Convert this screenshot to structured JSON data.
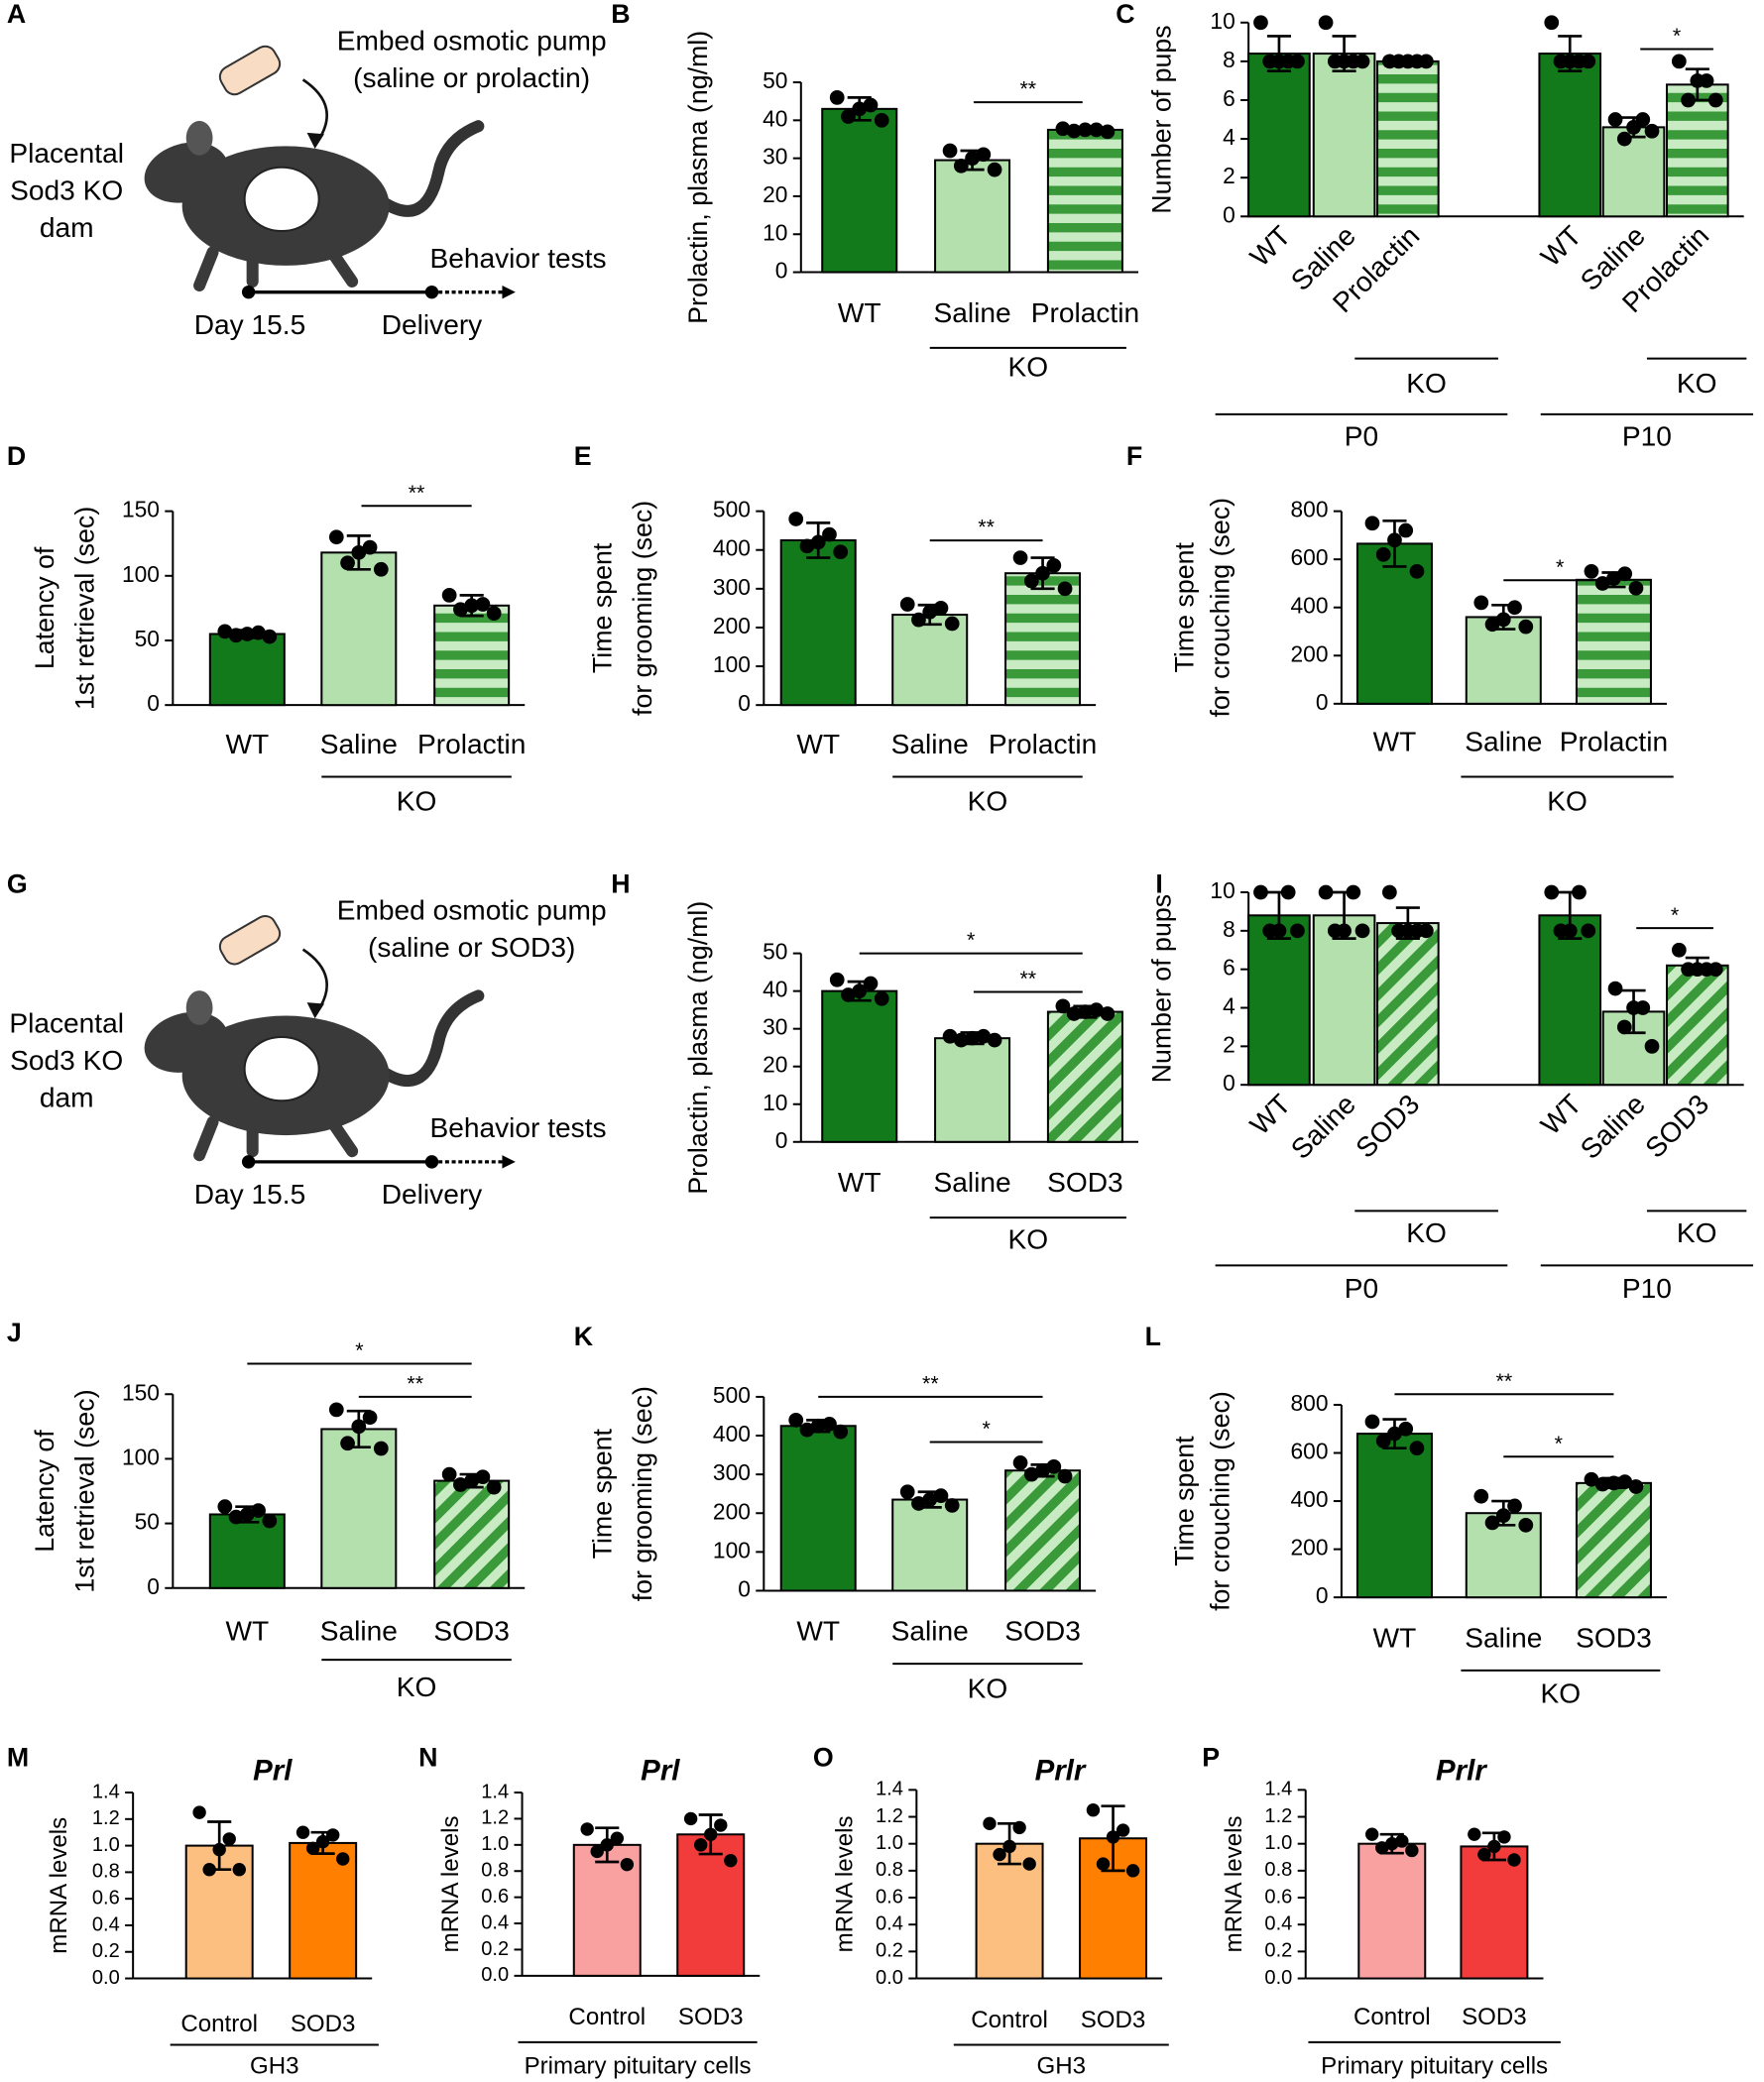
{
  "diagrams": [
    {
      "panel": "A",
      "pump": [
        "Embed osmotic pump",
        "(saline or prolactin)"
      ],
      "subject": [
        "Placental",
        "Sod3 KO",
        "dam"
      ],
      "tests": "Behavior tests",
      "start": "Day 15.5",
      "end": "Delivery"
    },
    {
      "panel": "G",
      "pump": [
        "Embed osmotic pump",
        "(saline or SOD3)"
      ],
      "subject": [
        "Placental",
        "Sod3 KO",
        "dam"
      ],
      "tests": "Behavior tests",
      "start": "Day 15.5",
      "end": "Delivery"
    }
  ],
  "chart_data": [
    {
      "type": "bar",
      "panel": "B",
      "ylabel": [
        "Prolactin, plasma (ng/ml)"
      ],
      "categories": [
        "WT",
        "Saline",
        "Prolactin"
      ],
      "groups": [
        "KO"
      ],
      "values": [
        43,
        29.5,
        37.5
      ],
      "errors": [
        3,
        2.5,
        0.7
      ],
      "points": [
        [
          46,
          44,
          43,
          41,
          40
        ],
        [
          32,
          31,
          30,
          28,
          27
        ],
        [
          37.8,
          37.5,
          37.5,
          37.2,
          37
        ]
      ],
      "colors": [
        "#127a1a",
        "#b3e0ad",
        "#3a9a3a"
      ],
      "patterns": [
        "solid",
        "solid",
        "hstripe"
      ],
      "ylim": [
        0,
        50
      ],
      "yticks": [
        0,
        10,
        20,
        30,
        40,
        50
      ],
      "annotations": [
        "**"
      ]
    },
    {
      "type": "bar",
      "panel": "C",
      "ylabel": [
        "Number of pups"
      ],
      "categories": [
        "WT",
        "Saline",
        "Prolactin",
        "WT",
        "Saline",
        "Prolactin"
      ],
      "groups": [
        "KO",
        "KO",
        "P0",
        "P10"
      ],
      "values": [
        8.4,
        8.4,
        8,
        8.4,
        4.6,
        6.8
      ],
      "errors": [
        0.9,
        0.9,
        0,
        0.9,
        0.5,
        0.8
      ],
      "points": [
        [
          10,
          8,
          8,
          8,
          8
        ],
        [
          10,
          8,
          8,
          8,
          8
        ],
        [
          8,
          8,
          8,
          8,
          8
        ],
        [
          10,
          8,
          8,
          8,
          8
        ],
        [
          5,
          5,
          4.6,
          4,
          4.4
        ],
        [
          8,
          7,
          7,
          6,
          6
        ]
      ],
      "colors": [
        "#127a1a",
        "#b3e0ad",
        "#3a9a3a",
        "#127a1a",
        "#b3e0ad",
        "#3a9a3a"
      ],
      "patterns": [
        "solid",
        "solid",
        "hstripe",
        "solid",
        "solid",
        "hstripe"
      ],
      "ylim": [
        0,
        10
      ],
      "yticks": [
        0,
        2,
        4,
        6,
        8,
        10
      ],
      "annotations": [
        "*"
      ]
    },
    {
      "type": "bar",
      "panel": "D",
      "ylabel": [
        "Latency of",
        "1st retrieval (sec)"
      ],
      "categories": [
        "WT",
        "Saline",
        "Prolactin"
      ],
      "groups": [
        "KO"
      ],
      "values": [
        55,
        118,
        77
      ],
      "errors": [
        3,
        13,
        8
      ],
      "points": [
        [
          57,
          56,
          55,
          54,
          53
        ],
        [
          130,
          122,
          118,
          110,
          105
        ],
        [
          85,
          78,
          77,
          74,
          71
        ]
      ],
      "colors": [
        "#127a1a",
        "#b3e0ad",
        "#3a9a3a"
      ],
      "patterns": [
        "solid",
        "solid",
        "hstripe"
      ],
      "ylim": [
        0,
        150
      ],
      "yticks": [
        0,
        50,
        100,
        150
      ],
      "annotations": [
        "**"
      ]
    },
    {
      "type": "bar",
      "panel": "E",
      "ylabel": [
        "Time spent",
        "for grooming (sec)"
      ],
      "categories": [
        "WT",
        "Saline",
        "Prolactin"
      ],
      "groups": [
        "KO"
      ],
      "values": [
        425,
        233,
        340
      ],
      "errors": [
        45,
        25,
        40
      ],
      "points": [
        [
          480,
          440,
          420,
          410,
          395
        ],
        [
          260,
          250,
          240,
          220,
          210
        ],
        [
          380,
          360,
          340,
          320,
          300
        ]
      ],
      "colors": [
        "#127a1a",
        "#b3e0ad",
        "#3a9a3a"
      ],
      "patterns": [
        "solid",
        "solid",
        "hstripe"
      ],
      "ylim": [
        0,
        500
      ],
      "yticks": [
        0,
        100,
        200,
        300,
        400,
        500
      ],
      "annotations": [
        "**"
      ]
    },
    {
      "type": "bar",
      "panel": "F",
      "ylabel": [
        "Time spent",
        "for crouching (sec)"
      ],
      "categories": [
        "WT",
        "Saline",
        "Prolactin"
      ],
      "groups": [
        "KO"
      ],
      "values": [
        665,
        360,
        515
      ],
      "errors": [
        95,
        50,
        30
      ],
      "points": [
        [
          750,
          720,
          680,
          620,
          550
        ],
        [
          420,
          400,
          350,
          330,
          320
        ],
        [
          550,
          540,
          520,
          500,
          480
        ]
      ],
      "colors": [
        "#127a1a",
        "#b3e0ad",
        "#3a9a3a"
      ],
      "patterns": [
        "solid",
        "solid",
        "hstripe"
      ],
      "ylim": [
        0,
        800
      ],
      "yticks": [
        0,
        200,
        400,
        600,
        800
      ],
      "annotations": [
        "*"
      ]
    },
    {
      "type": "bar",
      "panel": "H",
      "ylabel": [
        "Prolactin, plasma (ng/ml)"
      ],
      "categories": [
        "WT",
        "Saline",
        "SOD3"
      ],
      "groups": [
        "KO"
      ],
      "values": [
        40,
        27.5,
        34.5
      ],
      "errors": [
        2.5,
        1.5,
        1.5
      ],
      "points": [
        [
          43,
          42,
          40,
          39,
          38
        ],
        [
          28,
          28,
          27.5,
          27,
          27
        ],
        [
          36,
          35,
          34.5,
          34,
          34
        ]
      ],
      "colors": [
        "#127a1a",
        "#b3e0ad",
        "#3a9a3a"
      ],
      "patterns": [
        "solid",
        "solid",
        "dstripe"
      ],
      "ylim": [
        0,
        50
      ],
      "yticks": [
        0,
        10,
        20,
        30,
        40,
        50
      ],
      "annotations": [
        "*",
        "**"
      ]
    },
    {
      "type": "bar",
      "panel": "I",
      "ylabel": [
        "Number of pups"
      ],
      "categories": [
        "WT",
        "Saline",
        "SOD3",
        "WT",
        "Saline",
        "SOD3"
      ],
      "groups": [
        "KO",
        "KO",
        "P0",
        "P10"
      ],
      "values": [
        8.8,
        8.8,
        8.4,
        8.8,
        3.8,
        6.2
      ],
      "errors": [
        1.2,
        1.2,
        0.8,
        1.2,
        1.1,
        0.4
      ],
      "points": [
        [
          10,
          10,
          8,
          8,
          8
        ],
        [
          10,
          10,
          8,
          8,
          8
        ],
        [
          10,
          8,
          8,
          8,
          8
        ],
        [
          10,
          10,
          8,
          8,
          8
        ],
        [
          5,
          4,
          4,
          3,
          2
        ],
        [
          7,
          6,
          6,
          6,
          6
        ]
      ],
      "colors": [
        "#127a1a",
        "#b3e0ad",
        "#3a9a3a",
        "#127a1a",
        "#b3e0ad",
        "#3a9a3a"
      ],
      "patterns": [
        "solid",
        "solid",
        "dstripe",
        "solid",
        "solid",
        "dstripe"
      ],
      "ylim": [
        0,
        10
      ],
      "yticks": [
        0,
        2,
        4,
        6,
        8,
        10
      ],
      "annotations": [
        "*"
      ]
    },
    {
      "type": "bar",
      "panel": "J",
      "ylabel": [
        "Latency of",
        "1st retrieval (sec)"
      ],
      "categories": [
        "WT",
        "Saline",
        "SOD3"
      ],
      "groups": [
        "KO"
      ],
      "values": [
        57,
        123,
        83
      ],
      "errors": [
        6,
        14,
        5
      ],
      "points": [
        [
          63,
          60,
          57,
          55,
          52
        ],
        [
          138,
          132,
          125,
          112,
          108
        ],
        [
          88,
          86,
          83,
          80,
          78
        ]
      ],
      "colors": [
        "#127a1a",
        "#b3e0ad",
        "#3a9a3a"
      ],
      "patterns": [
        "solid",
        "solid",
        "dstripe"
      ],
      "ylim": [
        0,
        150
      ],
      "yticks": [
        0,
        50,
        100,
        150
      ],
      "annotations": [
        "*",
        "**"
      ]
    },
    {
      "type": "bar",
      "panel": "K",
      "ylabel": [
        "Time spent",
        "for grooming (sec)"
      ],
      "categories": [
        "WT",
        "Saline",
        "SOD3"
      ],
      "groups": [
        "KO"
      ],
      "values": [
        425,
        235,
        310
      ],
      "errors": [
        15,
        20,
        15
      ],
      "points": [
        [
          440,
          430,
          425,
          415,
          410
        ],
        [
          255,
          245,
          235,
          225,
          220
        ],
        [
          330,
          320,
          310,
          300,
          295
        ]
      ],
      "colors": [
        "#127a1a",
        "#b3e0ad",
        "#3a9a3a"
      ],
      "patterns": [
        "solid",
        "solid",
        "dstripe"
      ],
      "ylim": [
        0,
        500
      ],
      "yticks": [
        0,
        100,
        200,
        300,
        400,
        500
      ],
      "annotations": [
        "**",
        "*"
      ]
    },
    {
      "type": "bar",
      "panel": "L",
      "ylabel": [
        "Time spent",
        "for crouching (sec)"
      ],
      "categories": [
        "WT",
        "Saline",
        "SOD3"
      ],
      "groups": [
        "KO"
      ],
      "values": [
        680,
        350,
        475
      ],
      "errors": [
        60,
        50,
        20
      ],
      "points": [
        [
          730,
          700,
          680,
          650,
          620
        ],
        [
          420,
          380,
          340,
          310,
          300
        ],
        [
          490,
          480,
          475,
          470,
          460
        ]
      ],
      "colors": [
        "#127a1a",
        "#b3e0ad",
        "#3a9a3a"
      ],
      "patterns": [
        "solid",
        "solid",
        "dstripe"
      ],
      "ylim": [
        0,
        800
      ],
      "yticks": [
        0,
        200,
        400,
        600,
        800
      ],
      "annotations": [
        "**",
        "*"
      ]
    },
    {
      "type": "bar",
      "panel": "M",
      "title": "Prl",
      "ylabel": [
        "mRNA levels"
      ],
      "categories": [
        "Control",
        "SOD3"
      ],
      "groups": [
        "GH3"
      ],
      "values": [
        1.0,
        1.02
      ],
      "errors": [
        0.18,
        0.08
      ],
      "points": [
        [
          1.25,
          1.05,
          0.97,
          0.82,
          0.82
        ],
        [
          1.1,
          1.08,
          1.03,
          0.98,
          0.9
        ]
      ],
      "colors": [
        "#fdbf7f",
        "#ff8000"
      ],
      "patterns": [
        "solid",
        "solid"
      ],
      "ylim": [
        0,
        1.4
      ],
      "yticks": [
        {
          "value": 0,
          "label": "0.0"
        },
        {
          "value": 0.2,
          "label": "0.2"
        },
        {
          "value": 0.4,
          "label": "0.4"
        },
        {
          "value": 0.6,
          "label": "0.6"
        },
        {
          "value": 0.8,
          "label": "0.8"
        },
        {
          "value": 1,
          "label": "1.0"
        },
        {
          "value": 1.2,
          "label": "1.2"
        },
        {
          "value": 1.4,
          "label": "1.4"
        }
      ],
      "annotations": []
    },
    {
      "type": "bar",
      "panel": "N",
      "title": "Prl",
      "ylabel": [
        "mRNA levels"
      ],
      "categories": [
        "Control",
        "SOD3"
      ],
      "groups": [
        "Primary pituitary cells"
      ],
      "values": [
        1.0,
        1.08
      ],
      "errors": [
        0.13,
        0.15
      ],
      "points": [
        [
          1.12,
          1.05,
          1.0,
          0.95,
          0.85
        ],
        [
          1.2,
          1.15,
          1.08,
          1.0,
          0.88
        ]
      ],
      "colors": [
        "#f9a0a0",
        "#f23c3c"
      ],
      "patterns": [
        "solid",
        "solid"
      ],
      "ylim": [
        0,
        1.4
      ],
      "yticks": [
        {
          "value": 0,
          "label": "0.0"
        },
        {
          "value": 0.2,
          "label": "0.2"
        },
        {
          "value": 0.4,
          "label": "0.4"
        },
        {
          "value": 0.6,
          "label": "0.6"
        },
        {
          "value": 0.8,
          "label": "0.8"
        },
        {
          "value": 1,
          "label": "1.0"
        },
        {
          "value": 1.2,
          "label": "1.2"
        },
        {
          "value": 1.4,
          "label": "1.4"
        }
      ],
      "annotations": []
    },
    {
      "type": "bar",
      "panel": "O",
      "title": "Prlr",
      "ylabel": [
        "mRNA levels"
      ],
      "categories": [
        "Control",
        "SOD3"
      ],
      "groups": [
        "GH3"
      ],
      "values": [
        1.0,
        1.04
      ],
      "errors": [
        0.15,
        0.24
      ],
      "points": [
        [
          1.15,
          1.12,
          0.98,
          0.92,
          0.85
        ],
        [
          1.25,
          1.1,
          1.05,
          0.85,
          0.8
        ]
      ],
      "colors": [
        "#fdbf7f",
        "#ff8000"
      ],
      "patterns": [
        "solid",
        "solid"
      ],
      "ylim": [
        0,
        1.4
      ],
      "yticks": [
        {
          "value": 0,
          "label": "0.0"
        },
        {
          "value": 0.2,
          "label": "0.2"
        },
        {
          "value": 0.4,
          "label": "0.4"
        },
        {
          "value": 0.6,
          "label": "0.6"
        },
        {
          "value": 0.8,
          "label": "0.8"
        },
        {
          "value": 1,
          "label": "1.0"
        },
        {
          "value": 1.2,
          "label": "1.2"
        },
        {
          "value": 1.4,
          "label": "1.4"
        }
      ],
      "annotations": []
    },
    {
      "type": "bar",
      "panel": "P",
      "title": "Prlr",
      "ylabel": [
        "mRNA levels"
      ],
      "categories": [
        "Control",
        "SOD3"
      ],
      "groups": [
        "Primary pituitary cells"
      ],
      "values": [
        1.0,
        0.98
      ],
      "errors": [
        0.07,
        0.1
      ],
      "points": [
        [
          1.07,
          1.02,
          1.0,
          0.97,
          0.95
        ],
        [
          1.07,
          1.05,
          0.98,
          0.92,
          0.88
        ]
      ],
      "colors": [
        "#f9a0a0",
        "#f23c3c"
      ],
      "patterns": [
        "solid",
        "solid"
      ],
      "ylim": [
        0,
        1.4
      ],
      "yticks": [
        {
          "value": 0,
          "label": "0.0"
        },
        {
          "value": 0.2,
          "label": "0.2"
        },
        {
          "value": 0.4,
          "label": "0.4"
        },
        {
          "value": 0.6,
          "label": "0.6"
        },
        {
          "value": 0.8,
          "label": "0.8"
        },
        {
          "value": 1,
          "label": "1.0"
        },
        {
          "value": 1.2,
          "label": "1.2"
        },
        {
          "value": 1.4,
          "label": "1.4"
        }
      ],
      "annotations": []
    }
  ]
}
